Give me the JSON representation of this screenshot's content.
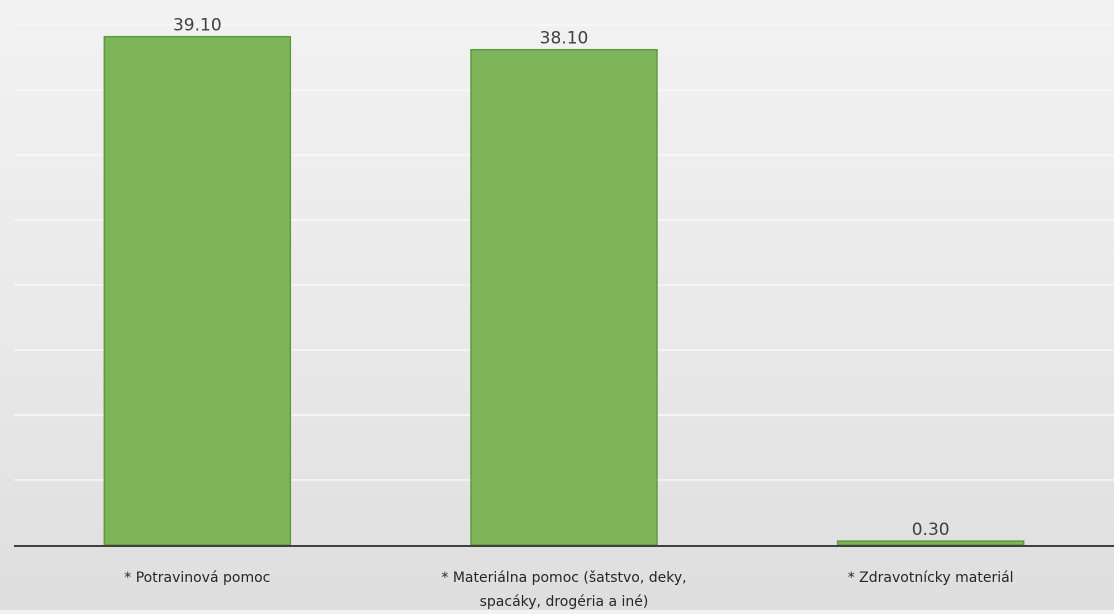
{
  "chart_data": {
    "type": "bar",
    "title": "",
    "xlabel": "",
    "ylabel": "",
    "categories": [
      "* Potravinová pomoc",
      "* Materiálna pomoc  (šatstvo, deky, spacáky, drogéria a iné)",
      "* Zdravotnícky materiál"
    ],
    "category_label_lines": [
      [
        "* Potravinová pomoc"
      ],
      [
        "* Materiálna pomoc  (šatstvo, deky,",
        "spacáky, drogéria a iné)"
      ],
      [
        "* Zdravotnícky materiál"
      ]
    ],
    "values": [
      39.1,
      38.1,
      0.3
    ],
    "data_labels": [
      "39.10",
      "38.10",
      "0.30"
    ],
    "ylim": [
      0,
      40
    ],
    "grid": true,
    "legend": "none",
    "colors": {
      "bar_fill": "#7fb55a",
      "bar_stroke": "#5f9a3a",
      "gridline": "#f8f8f8",
      "axis": "#404040",
      "label_text": "#262626",
      "value_text": "#404040"
    }
  }
}
